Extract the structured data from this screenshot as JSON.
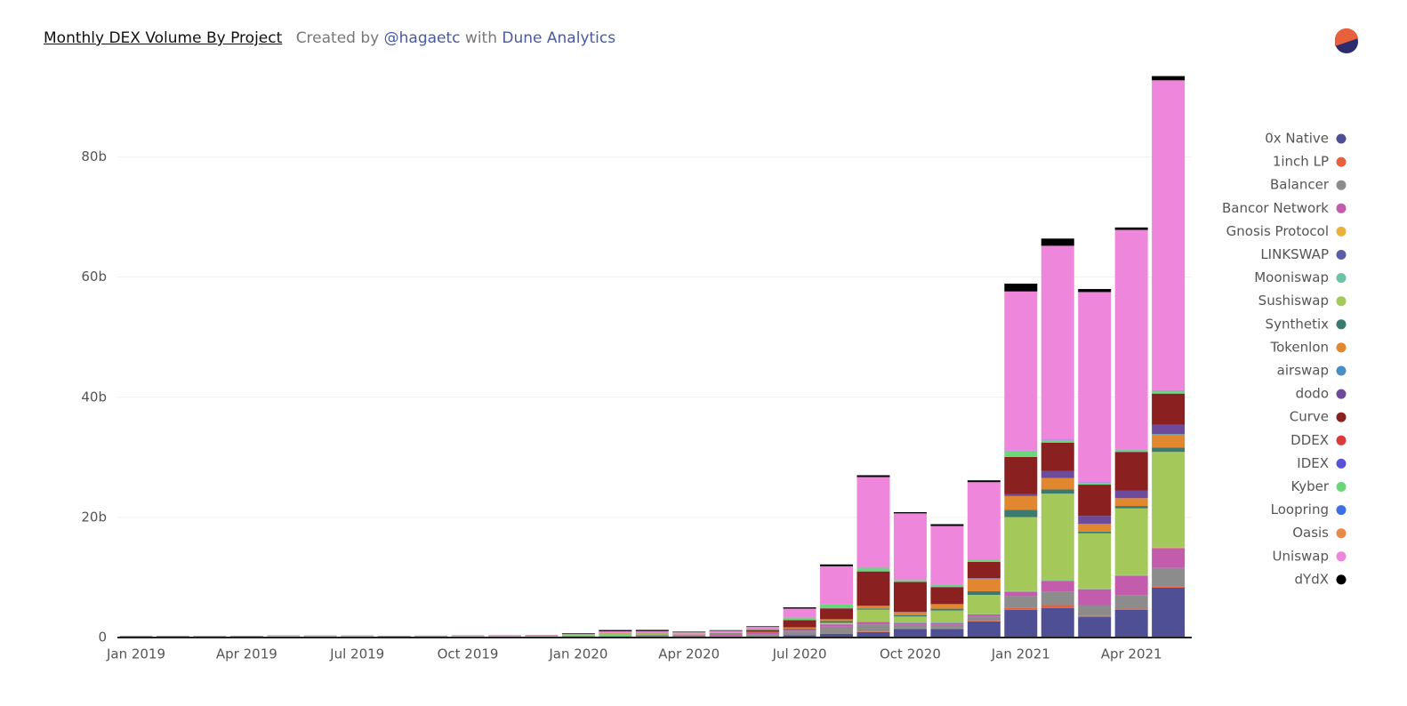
{
  "chart_data": {
    "type": "stacked_bar",
    "title": "Monthly DEX Volume By Project",
    "subtitle_prefix": "Created by",
    "author": "@hagaetc",
    "subtitle_mid": "with",
    "source": "Dune Analytics",
    "categories": [
      "Jan 2019",
      null,
      null,
      "Apr 2019",
      null,
      null,
      "Jul 2019",
      null,
      null,
      "Oct 2019",
      null,
      null,
      "Jan 2020",
      null,
      null,
      "Apr 2020",
      null,
      null,
      "Jul 2020",
      null,
      null,
      "Oct 2020",
      null,
      null,
      "Jan 2021",
      null,
      null,
      "Apr 2021",
      null
    ],
    "ylim": [
      0,
      94
    ],
    "yticks": [
      0,
      {
        "value": 20,
        "label": "20b"
      },
      {
        "value": 40,
        "label": "40b"
      },
      {
        "value": 60,
        "label": "60b"
      },
      {
        "value": 80,
        "label": "80b"
      }
    ],
    "grid": true,
    "legend": "right",
    "series": [
      {
        "name": "0x Native",
        "color": "#4f4f96",
        "values": [
          0.02,
          0.02,
          0.02,
          0.03,
          0.03,
          0.03,
          0.03,
          0.03,
          0.03,
          0.04,
          0.04,
          0.05,
          0.05,
          0.1,
          0.1,
          0.1,
          0.1,
          0.2,
          0.4,
          0.6,
          0.9,
          1.4,
          1.4,
          2.7,
          4.6,
          4.9,
          3.4,
          4.6,
          8.3
        ]
      },
      {
        "name": "1inch LP",
        "color": "#e8603c",
        "values": [
          0,
          0,
          0,
          0,
          0,
          0,
          0,
          0,
          0,
          0,
          0,
          0,
          0,
          0,
          0,
          0,
          0,
          0,
          0,
          0,
          0.1,
          0.1,
          0.1,
          0.1,
          0.3,
          0.5,
          0.2,
          0.2,
          0.2
        ]
      },
      {
        "name": "Balancer",
        "color": "#8c8c8c",
        "values": [
          0,
          0,
          0,
          0,
          0,
          0,
          0,
          0,
          0,
          0,
          0,
          0,
          0,
          0,
          0,
          0.05,
          0.1,
          0.3,
          0.6,
          1.2,
          1.2,
          0.6,
          0.6,
          0.7,
          2.0,
          2.2,
          1.8,
          2.2,
          3.1
        ]
      },
      {
        "name": "Bancor Network",
        "color": "#c45cae",
        "values": [
          0.05,
          0.05,
          0.04,
          0.04,
          0.05,
          0.05,
          0.06,
          0.05,
          0.05,
          0.06,
          0.05,
          0.05,
          0.1,
          0.1,
          0.2,
          0.2,
          0.3,
          0.4,
          0.3,
          0.4,
          0.4,
          0.3,
          0.3,
          0.3,
          0.7,
          1.8,
          2.6,
          3.3,
          3.3
        ]
      },
      {
        "name": "Gnosis Protocol",
        "color": "#e9b23c",
        "values": [
          0,
          0,
          0,
          0,
          0,
          0,
          0,
          0,
          0,
          0,
          0,
          0,
          0,
          0,
          0,
          0,
          0,
          0,
          0,
          0,
          0,
          0,
          0,
          0,
          0.05,
          0.05,
          0.05,
          0.05,
          0.05
        ]
      },
      {
        "name": "LINKSWAP",
        "color": "#5b5ea6",
        "values": [
          0,
          0,
          0,
          0,
          0,
          0,
          0,
          0,
          0,
          0,
          0,
          0,
          0,
          0,
          0,
          0,
          0,
          0,
          0,
          0,
          0,
          0.05,
          0.05,
          0.05,
          0.05,
          0.05,
          0.05,
          0,
          0
        ]
      },
      {
        "name": "Mooniswap",
        "color": "#6cc3a8",
        "values": [
          0,
          0,
          0,
          0,
          0,
          0,
          0,
          0,
          0,
          0,
          0,
          0,
          0,
          0,
          0,
          0,
          0,
          0,
          0,
          0.05,
          0.05,
          0.05,
          0.05,
          0.05,
          0.05,
          0.05,
          0.05,
          0.05,
          0.05
        ]
      },
      {
        "name": "Sushiswap",
        "color": "#a4c95a",
        "values": [
          0,
          0,
          0,
          0,
          0,
          0,
          0,
          0,
          0,
          0,
          0,
          0,
          0,
          0,
          0,
          0,
          0,
          0,
          0,
          0.2,
          2.0,
          1.0,
          2.0,
          3.2,
          12.3,
          14.4,
          9.2,
          11.1,
          15.9
        ]
      },
      {
        "name": "Synthetix",
        "color": "#3b7a6e",
        "values": [
          0,
          0,
          0,
          0,
          0,
          0,
          0,
          0,
          0,
          0,
          0,
          0,
          0,
          0,
          0,
          0,
          0,
          0,
          0.2,
          0.3,
          0.2,
          0.2,
          0.3,
          0.6,
          1.2,
          0.7,
          0.3,
          0.4,
          0.7
        ]
      },
      {
        "name": "Tokenlon",
        "color": "#e0872f",
        "values": [
          0,
          0,
          0,
          0,
          0,
          0,
          0,
          0,
          0,
          0,
          0,
          0,
          0,
          0,
          0,
          0,
          0.05,
          0.05,
          0.2,
          0.3,
          0.4,
          0.5,
          0.7,
          2.1,
          2.3,
          1.9,
          1.3,
          1.3,
          2.2
        ]
      },
      {
        "name": "airswap",
        "color": "#4a8fc4",
        "values": [
          0.02,
          0.02,
          0.02,
          0.02,
          0.02,
          0.02,
          0.02,
          0.02,
          0.02,
          0.02,
          0.02,
          0.02,
          0.02,
          0,
          0,
          0,
          0,
          0,
          0,
          0,
          0,
          0,
          0,
          0,
          0,
          0,
          0,
          0,
          0.1
        ]
      },
      {
        "name": "dodo",
        "color": "#6e4b9a",
        "values": [
          0,
          0,
          0,
          0,
          0,
          0,
          0,
          0,
          0,
          0,
          0,
          0,
          0,
          0,
          0,
          0,
          0,
          0,
          0,
          0,
          0.05,
          0.05,
          0.1,
          0.1,
          0.3,
          1.2,
          1.3,
          1.3,
          1.5
        ]
      },
      {
        "name": "Curve",
        "color": "#8b2020",
        "values": [
          0.01,
          0.01,
          0.01,
          0.01,
          0.01,
          0.01,
          0.01,
          0.01,
          0.01,
          0.01,
          0.01,
          0.01,
          0.02,
          0.03,
          0.05,
          0.05,
          0.1,
          0.3,
          1.2,
          1.8,
          5.7,
          5.0,
          2.8,
          2.7,
          6.2,
          4.7,
          5.2,
          6.4,
          5.2
        ]
      },
      {
        "name": "DDEX",
        "color": "#d93a3a",
        "values": [
          0.02,
          0.02,
          0.02,
          0.02,
          0.02,
          0.02,
          0.02,
          0.02,
          0.02,
          0.02,
          0.02,
          0,
          0,
          0,
          0,
          0,
          0,
          0,
          0,
          0,
          0,
          0,
          0,
          0,
          0,
          0,
          0,
          0,
          0
        ]
      },
      {
        "name": "IDEX",
        "color": "#5a52d6",
        "values": [
          0.03,
          0.03,
          0.03,
          0.03,
          0.03,
          0.03,
          0.03,
          0.03,
          0.03,
          0.03,
          0.03,
          0.03,
          0.03,
          0.02,
          0.02,
          0.02,
          0.02,
          0.02,
          0.02,
          0.02,
          0.02,
          0.02,
          0.02,
          0.02,
          0.02,
          0.02,
          0.02,
          0.02,
          0.02
        ]
      },
      {
        "name": "Kyber",
        "color": "#6cd67a",
        "values": [
          0.08,
          0.07,
          0.06,
          0.07,
          0.09,
          0.08,
          0.07,
          0.06,
          0.06,
          0.07,
          0.1,
          0.15,
          0.2,
          0.4,
          0.3,
          0.2,
          0.2,
          0.2,
          0.4,
          0.7,
          0.6,
          0.3,
          0.3,
          0.3,
          1.0,
          0.4,
          0.3,
          0.3,
          0.4
        ]
      },
      {
        "name": "Loopring",
        "color": "#3e6de6",
        "values": [
          0,
          0,
          0,
          0,
          0,
          0,
          0,
          0,
          0,
          0,
          0,
          0,
          0,
          0,
          0,
          0,
          0,
          0,
          0,
          0,
          0,
          0,
          0.05,
          0.05,
          0.05,
          0.05,
          0.05,
          0.05,
          0.05
        ]
      },
      {
        "name": "Oasis",
        "color": "#e9894a",
        "values": [
          0.03,
          0.03,
          0.03,
          0.03,
          0.03,
          0.03,
          0.03,
          0.03,
          0.03,
          0.03,
          0.03,
          0.03,
          0.1,
          0.2,
          0.2,
          0.05,
          0.05,
          0,
          0,
          0,
          0,
          0,
          0,
          0,
          0,
          0,
          0,
          0,
          0
        ]
      },
      {
        "name": "Uniswap",
        "color": "#ee86dc",
        "values": [
          0.01,
          0.01,
          0.01,
          0.02,
          0.02,
          0.02,
          0.02,
          0.02,
          0.03,
          0.04,
          0.05,
          0.06,
          0.1,
          0.2,
          0.2,
          0.2,
          0.2,
          0.3,
          1.5,
          6.3,
          15.1,
          11.1,
          9.8,
          12.9,
          26.5,
          32.3,
          31.7,
          36.6,
          51.7
        ]
      },
      {
        "name": "dYdX",
        "color": "#000000",
        "values": [
          0.03,
          0.03,
          0.03,
          0.03,
          0.03,
          0.03,
          0.03,
          0.03,
          0.03,
          0.03,
          0.03,
          0.03,
          0.1,
          0.2,
          0.2,
          0.1,
          0.1,
          0.1,
          0.2,
          0.3,
          0.3,
          0.2,
          0.3,
          0.3,
          1.3,
          1.2,
          0.5,
          0.4,
          0.7
        ]
      }
    ]
  }
}
